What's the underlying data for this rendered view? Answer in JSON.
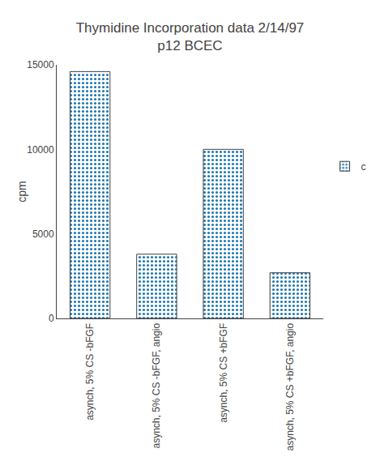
{
  "chart_data": {
    "type": "bar",
    "title": "Thymidine Incorporation data 2/14/97",
    "subtitle": "p12 BCEC",
    "ylabel": "cpm",
    "categories": [
      "asynch, 5% CS -bFGF",
      "asynch, 5% CS -bFGF, angio",
      "asynch, 5% CS +bFGF",
      "asynch, 5% CS +bFGF, angio"
    ],
    "series": [
      {
        "name": "c",
        "values": [
          14600,
          3800,
          10000,
          2700
        ]
      }
    ],
    "ylim": [
      0,
      15000
    ],
    "yticks": [
      0,
      5000,
      10000,
      15000
    ],
    "grid": false,
    "legend": "right"
  }
}
